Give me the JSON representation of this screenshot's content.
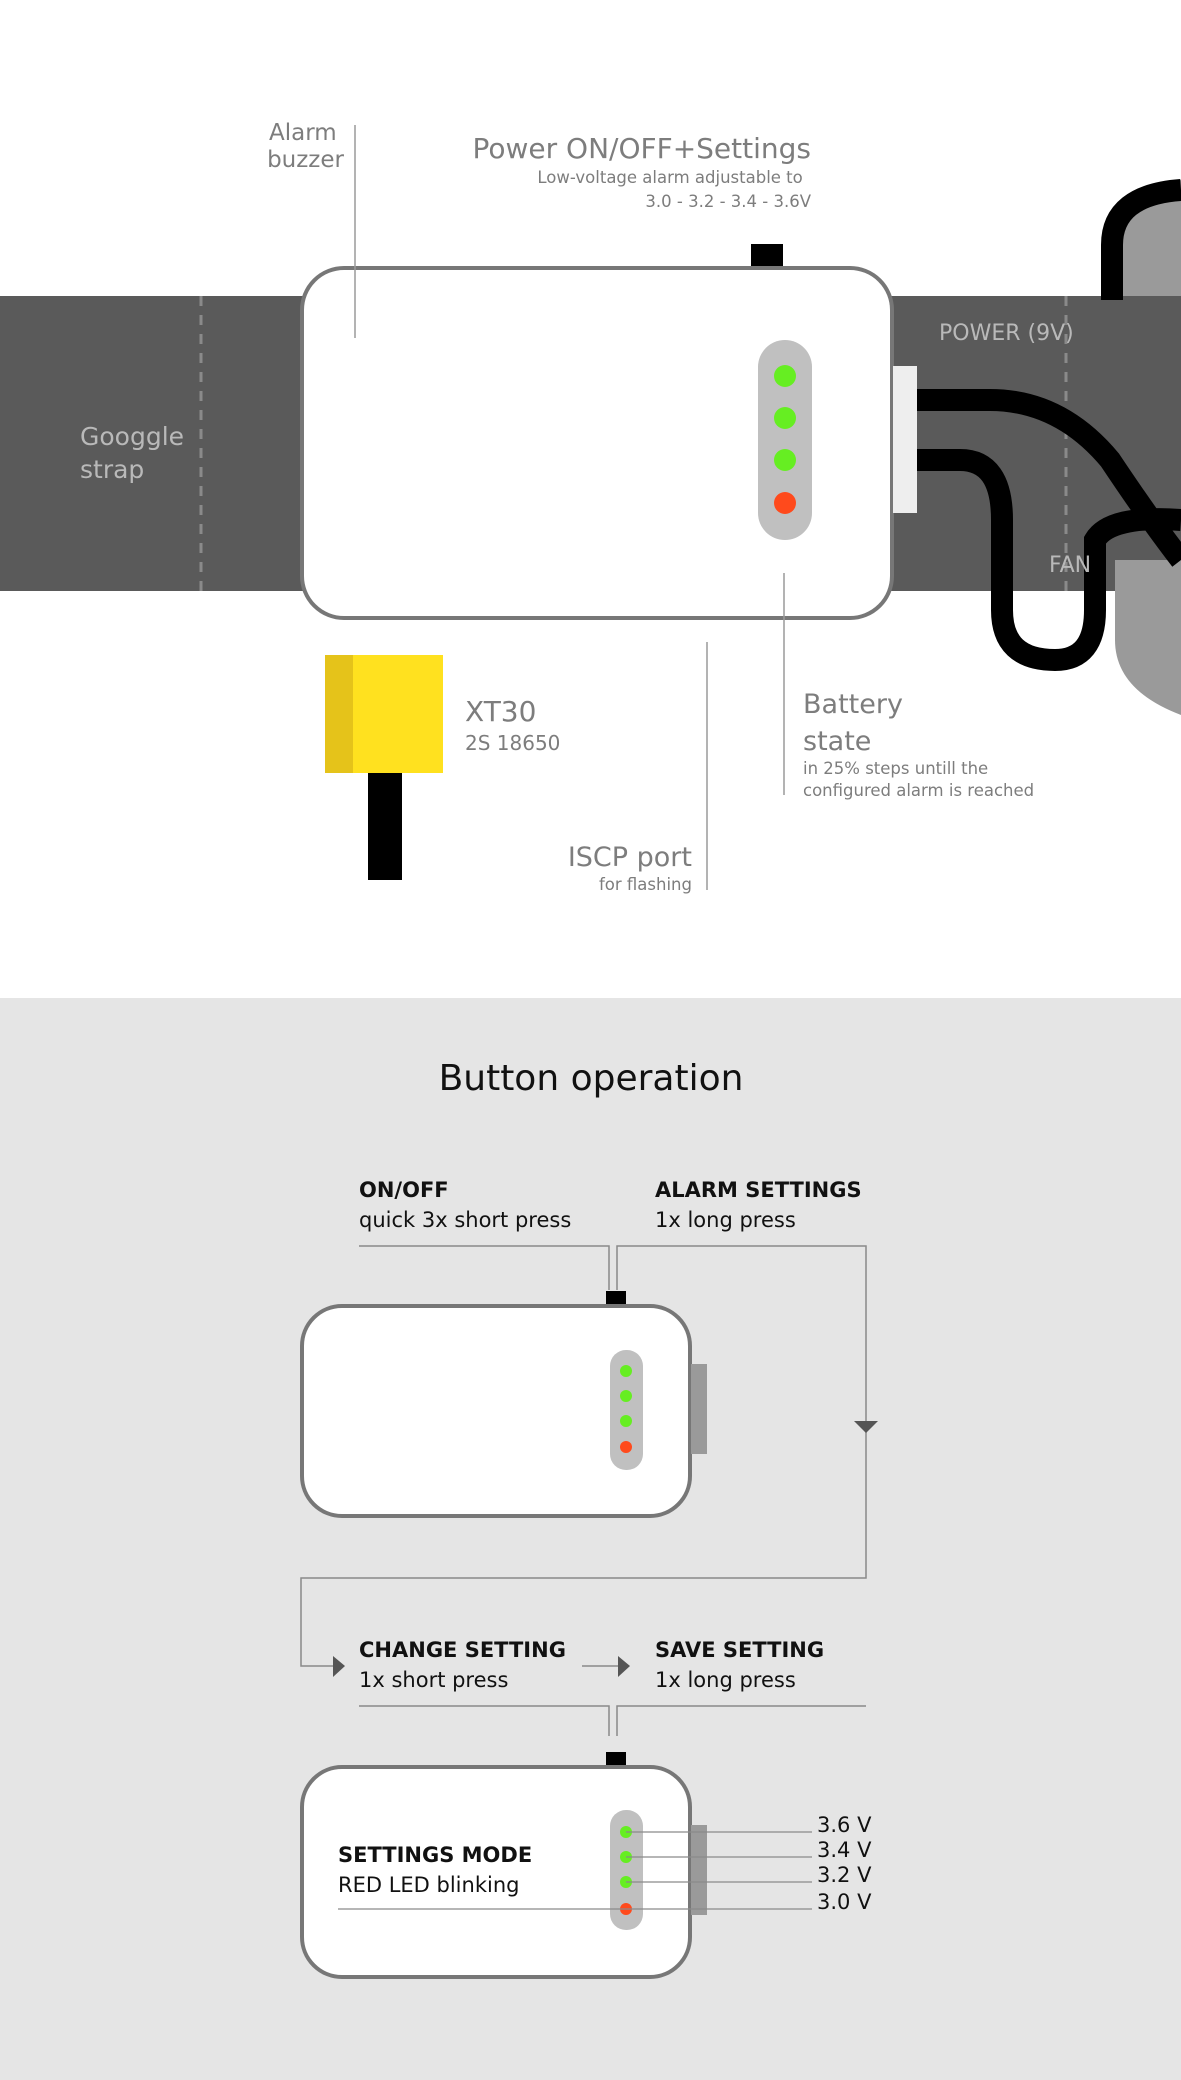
{
  "top": {
    "strap_label": [
      "Googgle",
      "strap"
    ],
    "buzzer_label": [
      "Alarm",
      "buzzer"
    ],
    "power_title": "Power ON/OFF+Settings",
    "power_sub": [
      "Low-voltage alarm adjustable to",
      "3.0 - 3.2 - 3.4 - 3.6V"
    ],
    "power_9v": "POWER (9V)",
    "fan": "FAN",
    "xt30_title": "XT30",
    "xt30_sub": "2S 18650",
    "iscp_title": "ISCP port",
    "iscp_sub": "for flashing",
    "battery_title": [
      "Battery",
      "state"
    ],
    "battery_sub": [
      "in 25% steps untill the",
      "configured alarm is reached"
    ]
  },
  "bottom": {
    "heading": "Button operation",
    "onoff_title": "ON/OFF",
    "onoff_sub": "quick 3x short press",
    "alarm_title": "ALARM SETTINGS",
    "alarm_sub": "1x long press",
    "change_title": "CHANGE SETTING",
    "change_sub": "1x short press",
    "save_title": "SAVE SETTING",
    "save_sub": "1x long press",
    "settings_title": "SETTINGS MODE",
    "settings_sub": "RED LED blinking",
    "voltages": [
      "3.6 V",
      "3.4 V",
      "3.2 V",
      "3.0 V"
    ]
  },
  "colors": {
    "strap": "#5a5a5a",
    "led_green": "#66ee22",
    "led_red": "#ff4a1c",
    "xt30_yellow": "#ffe11f",
    "panel_bg": "#e5e5e5"
  }
}
